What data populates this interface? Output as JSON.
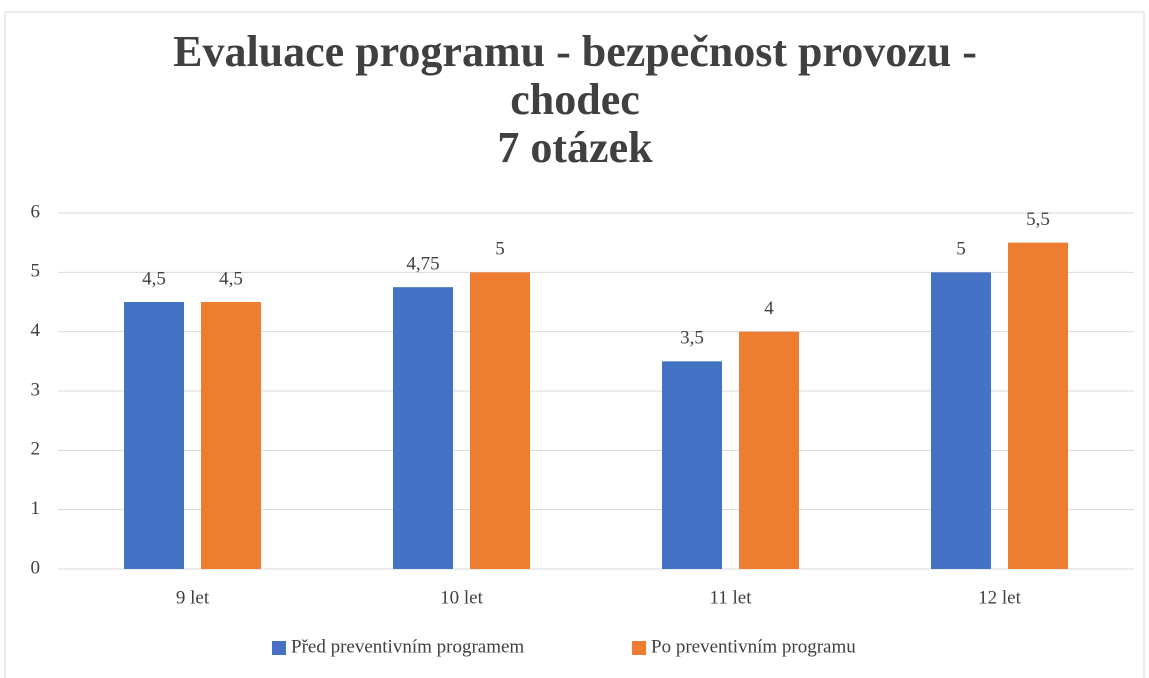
{
  "chart_data": {
    "type": "bar",
    "title": "Evaluace programu - bezpečnost provozu - chodec",
    "subtitle": "7 otázek",
    "categories": [
      "9 let",
      "10 let",
      "11 let",
      "12 let"
    ],
    "series": [
      {
        "name": "Před preventivním programem",
        "color": "#4472c4",
        "values": [
          4.5,
          4.75,
          3.5,
          5
        ],
        "value_labels": [
          "4,5",
          "4,75",
          "3,5",
          "5"
        ]
      },
      {
        "name": "Po preventivním programu",
        "color": "#ed7d31",
        "values": [
          4.5,
          5,
          4,
          5.5
        ],
        "value_labels": [
          "4,5",
          "5",
          "4",
          "5,5"
        ]
      }
    ],
    "ylim": [
      0,
      6
    ],
    "yticks": [
      0,
      1,
      2,
      3,
      4,
      5,
      6
    ],
    "grid": true,
    "legend": "bottom"
  }
}
